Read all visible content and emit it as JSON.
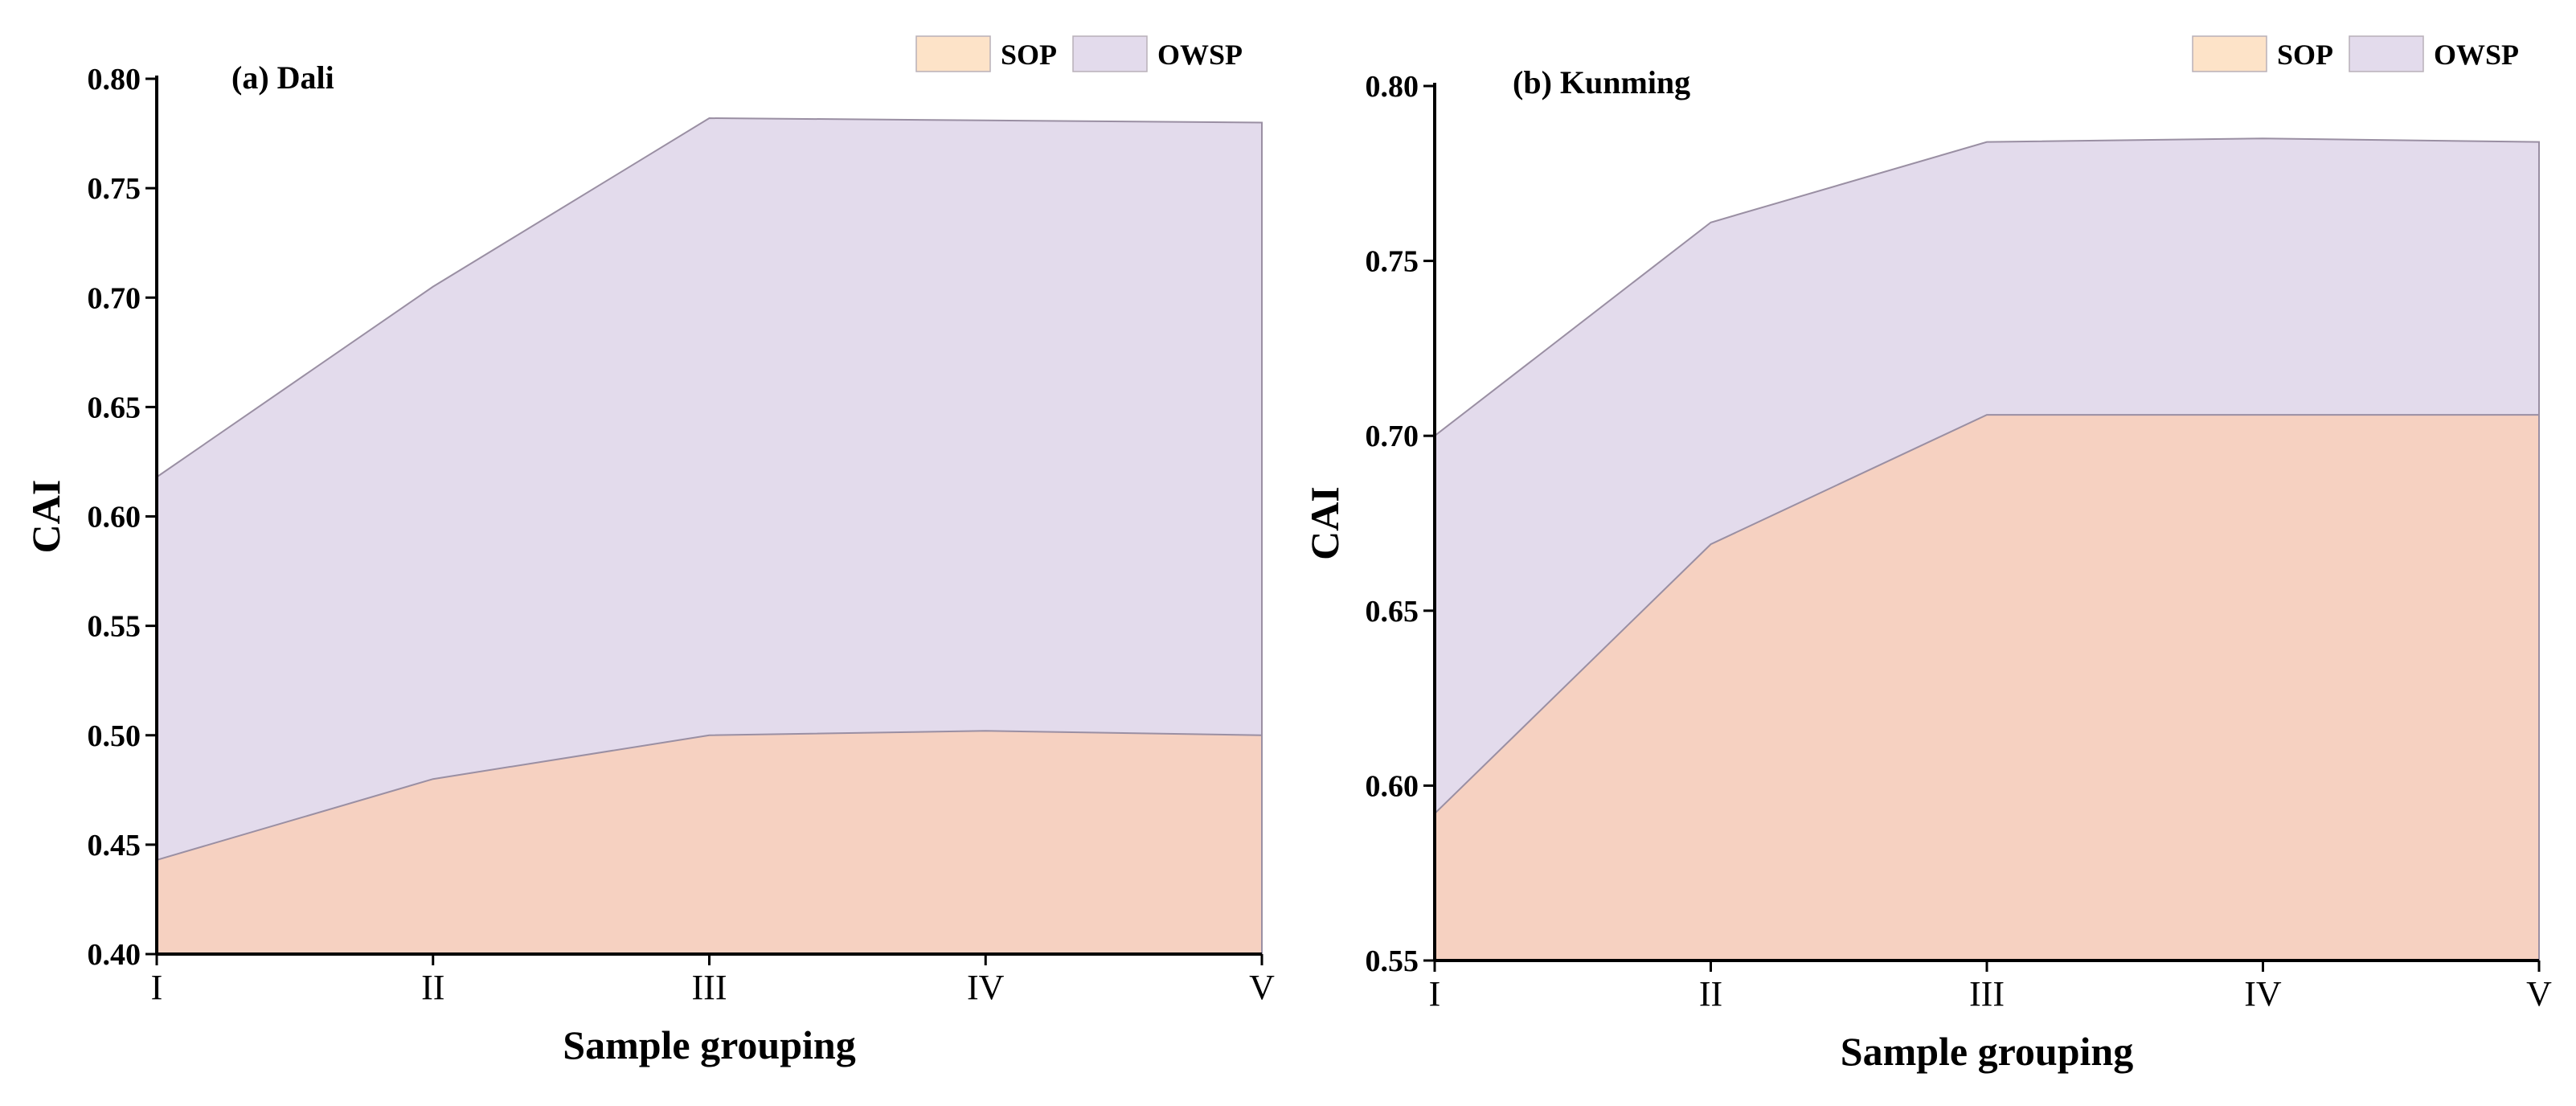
{
  "colors": {
    "sop_fill": "#f6d1c1",
    "owsp_fill": "#e3dbec",
    "sop_legend": "#fde3c8",
    "owsp_legend": "#e3dbec",
    "outline": "#9a8fa3",
    "axis": "#000000"
  },
  "chart_data": [
    {
      "type": "area",
      "stacked": false,
      "title": "(a) Dali",
      "xlabel": "Sample grouping",
      "ylabel": "CAI",
      "categories": [
        "I",
        "II",
        "III",
        "IV",
        "V"
      ],
      "ylim": [
        0.4,
        0.8
      ],
      "yticks": [
        "0.40",
        "0.45",
        "0.50",
        "0.55",
        "0.60",
        "0.65",
        "0.70",
        "0.75",
        "0.80"
      ],
      "legend_position": "top-right",
      "series": [
        {
          "name": "SOP",
          "values": [
            0.443,
            0.48,
            0.5,
            0.502,
            0.5
          ]
        },
        {
          "name": "OWSP",
          "values": [
            0.618,
            0.705,
            0.782,
            0.781,
            0.78
          ]
        }
      ]
    },
    {
      "type": "area",
      "stacked": false,
      "title": "(b) Kunming",
      "xlabel": "Sample grouping",
      "ylabel": "CAI",
      "categories": [
        "I",
        "II",
        "III",
        "IV",
        "V"
      ],
      "ylim": [
        0.55,
        0.8
      ],
      "yticks": [
        "0.55",
        "0.60",
        "0.65",
        "0.70",
        "0.75",
        "0.80"
      ],
      "legend_position": "top-right",
      "series": [
        {
          "name": "SOP",
          "values": [
            0.592,
            0.669,
            0.706,
            0.706,
            0.706
          ]
        },
        {
          "name": "OWSP",
          "values": [
            0.7,
            0.761,
            0.784,
            0.785,
            0.784
          ]
        }
      ]
    }
  ]
}
